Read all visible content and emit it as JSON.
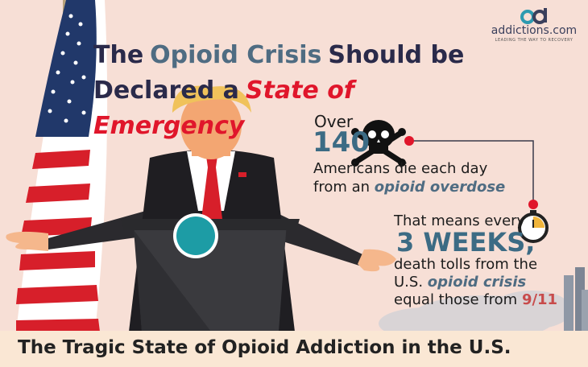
{
  "logo": {
    "name": "addictions.com",
    "tagline": "LEADING THE WAY TO RECOVERY",
    "mark_icon": "ad-logo-icon"
  },
  "headline": {
    "line1": [
      "The",
      "Opioid Crisis",
      "Should be"
    ],
    "line2": [
      "Declared a",
      "State of Emergency"
    ]
  },
  "stat1": {
    "over": "Over",
    "number": "140",
    "line1": "Americans die each day",
    "line2_prefix": "from an",
    "line2_emph": "opioid overdose",
    "icon": "skull-crossbones-icon"
  },
  "stat2": {
    "line1": "That means every",
    "weeks": "3 WEEKS,",
    "line2": "death tolls from the",
    "line3_prefix": "U.S.",
    "line3_emph": "opioid crisis",
    "line4_prefix": "equal those from",
    "line4_emph": "9/11",
    "icon": "stopwatch-icon"
  },
  "footer": {
    "title": "The Tragic State of Opioid Addiction in the U.S."
  },
  "colors": {
    "background": "#f7dfd6",
    "headline": "#2a2a4a",
    "accent_blue": "#3c6b84",
    "accent_red": "#e0162b",
    "footer_bg": "#fae7d4"
  }
}
